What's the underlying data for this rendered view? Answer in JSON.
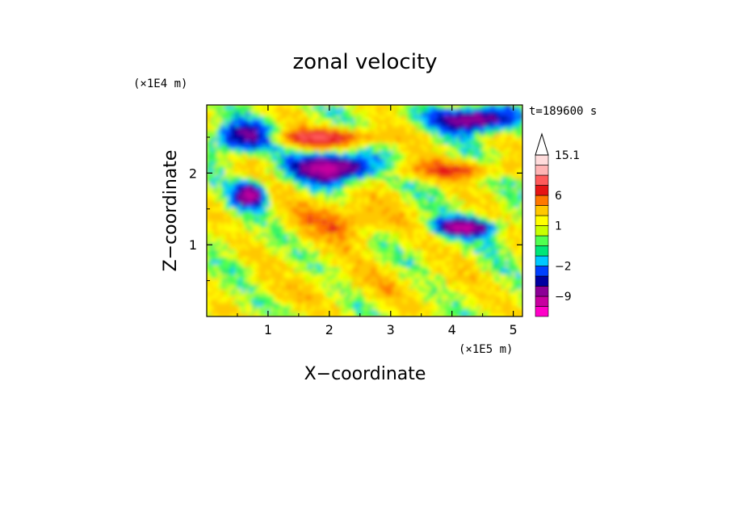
{
  "chart_data": {
    "type": "heatmap",
    "title": "zonal velocity",
    "xlabel": "X−coordinate",
    "ylabel": "Z−coordinate",
    "x_scale_note": "(×1E5 m)",
    "y_scale_note": "(×1E4 m)",
    "time_label": "t=189600 s",
    "xlim": [
      0,
      5.15
    ],
    "ylim": [
      0,
      2.95
    ],
    "x_ticks": [
      1,
      2,
      3,
      4,
      5
    ],
    "x_tick_labels": [
      "1",
      "2",
      "3",
      "4",
      "5"
    ],
    "y_ticks": [
      1,
      2
    ],
    "y_tick_labels": [
      "1",
      "2"
    ],
    "colorbar": {
      "levels": [
        -15,
        -12,
        -9,
        -6,
        -4,
        -2,
        -1,
        -0.5,
        0.5,
        1,
        2,
        4,
        6,
        9,
        12,
        15.1
      ],
      "colors": [
        "#ff00c8",
        "#c800a0",
        "#8c0096",
        "#0000a0",
        "#0040ff",
        "#00c8ff",
        "#00e678",
        "#50ff50",
        "#c8ff00",
        "#ffff00",
        "#ffc800",
        "#ff7800",
        "#e61414",
        "#ff5a5a",
        "#ffb4b4",
        "#ffdcdc"
      ],
      "tick_labels": [
        "15.1",
        "6",
        "1",
        "−2",
        "−9"
      ],
      "tick_values": [
        15.1,
        6,
        1,
        -2,
        -9
      ],
      "extend_max": true
    },
    "field_features": [
      {
        "kind": "band",
        "value": -8,
        "x": [
          0.0,
          1.2
        ],
        "z": [
          2.25,
          2.75
        ]
      },
      {
        "kind": "band",
        "value": 8,
        "x": [
          0.8,
          3.0
        ],
        "z": [
          2.35,
          2.65
        ]
      },
      {
        "kind": "band",
        "value": -12,
        "x": [
          1.3,
          2.8
        ],
        "z": [
          1.85,
          2.3
        ]
      },
      {
        "kind": "band",
        "value": 5,
        "x": [
          2.8,
          5.15
        ],
        "z": [
          1.9,
          2.2
        ]
      },
      {
        "kind": "band",
        "value": -10,
        "x": [
          3.6,
          5.15
        ],
        "z": [
          2.55,
          2.95
        ]
      },
      {
        "kind": "band",
        "value": -10,
        "x": [
          0.4,
          1.0
        ],
        "z": [
          1.5,
          1.9
        ]
      },
      {
        "kind": "band",
        "value": -10,
        "x": [
          3.6,
          4.8
        ],
        "z": [
          1.1,
          1.4
        ]
      },
      {
        "kind": "band",
        "value": 4,
        "x": [
          1.2,
          3.2
        ],
        "z": [
          1.0,
          1.7
        ]
      },
      {
        "kind": "band",
        "value": 1,
        "x": [
          0.0,
          5.15
        ],
        "z": [
          0.0,
          0.9
        ]
      }
    ]
  }
}
